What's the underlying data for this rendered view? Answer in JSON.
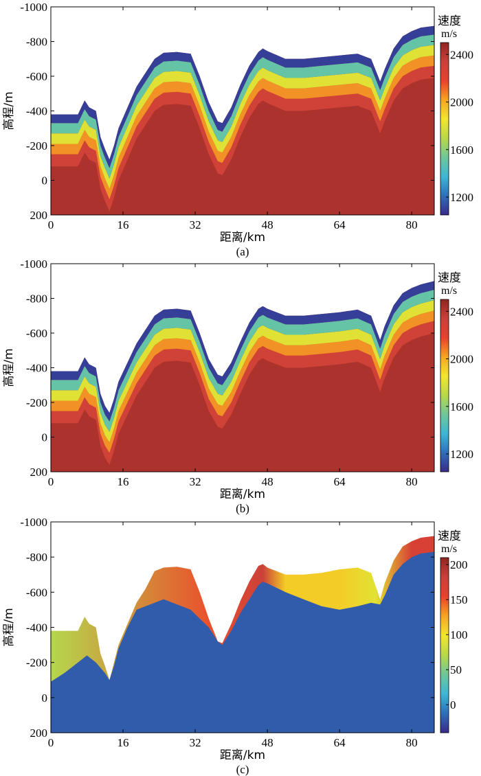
{
  "colors": {
    "ramp": [
      "#3a2a8a",
      "#2e6fb8",
      "#3fb6d6",
      "#6fc79a",
      "#b8d84a",
      "#f4e62a",
      "#f5a623",
      "#e8412e",
      "#c9413a",
      "#8f2620"
    ]
  },
  "chart_data": [
    {
      "type": "heatmap",
      "caption": "(a)",
      "xlabel": "距离/km",
      "ylabel": "高程/m",
      "xlim": [
        0,
        85
      ],
      "ylim": [
        200,
        -1000
      ],
      "x_ticks": [
        {
          "v": 0,
          "label": "0"
        },
        {
          "v": 16,
          "label": "16"
        },
        {
          "v": 32,
          "label": "32"
        },
        {
          "v": 48,
          "label": "48"
        },
        {
          "v": 64,
          "label": "64"
        },
        {
          "v": 80,
          "label": "80"
        }
      ],
      "y_ticks": [
        {
          "v": -1000,
          "label": "-1000"
        },
        {
          "v": -800,
          "label": "-800"
        },
        {
          "v": -600,
          "label": "-600"
        },
        {
          "v": -400,
          "label": "-400"
        },
        {
          "v": -200,
          "label": "-200"
        },
        {
          "v": 0,
          "label": "0"
        },
        {
          "v": 200,
          "label": "200"
        }
      ],
      "colorbar": {
        "title": "速度",
        "unit": "m/s",
        "range": [
          1050,
          2500
        ],
        "ticks": [
          {
            "v": 1200,
            "label": "1200"
          },
          {
            "v": 1600,
            "label": "1600"
          },
          {
            "v": 2000,
            "label": "2000"
          },
          {
            "v": 2400,
            "label": "2400"
          }
        ]
      },
      "surface": [
        [
          0,
          -380
        ],
        [
          3,
          -380
        ],
        [
          6,
          -380
        ],
        [
          7.5,
          -460
        ],
        [
          8.5,
          -420
        ],
        [
          10,
          -400
        ],
        [
          11,
          -250
        ],
        [
          12,
          -180
        ],
        [
          13,
          -120
        ],
        [
          14,
          -200
        ],
        [
          15,
          -300
        ],
        [
          17,
          -420
        ],
        [
          19,
          -540
        ],
        [
          21,
          -620
        ],
        [
          23,
          -700
        ],
        [
          25,
          -735
        ],
        [
          28,
          -740
        ],
        [
          31,
          -730
        ],
        [
          33,
          -600
        ],
        [
          35,
          -450
        ],
        [
          37,
          -340
        ],
        [
          38,
          -330
        ],
        [
          40,
          -420
        ],
        [
          42,
          -550
        ],
        [
          44,
          -660
        ],
        [
          46,
          -740
        ],
        [
          47,
          -760
        ],
        [
          48,
          -745
        ],
        [
          52,
          -700
        ],
        [
          56,
          -700
        ],
        [
          60,
          -710
        ],
        [
          64,
          -720
        ],
        [
          68,
          -730
        ],
        [
          71,
          -700
        ],
        [
          73,
          -570
        ],
        [
          74,
          -640
        ],
        [
          76,
          -760
        ],
        [
          78,
          -830
        ],
        [
          80,
          -860
        ],
        [
          82,
          -880
        ],
        [
          85,
          -890
        ]
      ],
      "values_top_to_depth": [
        [
          0,
          1100
        ],
        [
          50,
          1500
        ],
        [
          110,
          1800
        ],
        [
          170,
          2050
        ],
        [
          230,
          2300
        ],
        [
          300,
          2420
        ]
      ]
    },
    {
      "type": "heatmap",
      "caption": "(b)",
      "xlabel": "距离/km",
      "ylabel": "高程/m",
      "xlim": [
        0,
        85
      ],
      "ylim": [
        200,
        -1000
      ],
      "x_ticks": [
        {
          "v": 0,
          "label": "0"
        },
        {
          "v": 16,
          "label": "16"
        },
        {
          "v": 32,
          "label": "32"
        },
        {
          "v": 48,
          "label": "48"
        },
        {
          "v": 64,
          "label": "64"
        },
        {
          "v": 80,
          "label": "80"
        }
      ],
      "y_ticks": [
        {
          "v": -1000,
          "label": "-1000"
        },
        {
          "v": -800,
          "label": "-800"
        },
        {
          "v": -600,
          "label": "-600"
        },
        {
          "v": -400,
          "label": "-400"
        },
        {
          "v": -200,
          "label": "-200"
        },
        {
          "v": 0,
          "label": "0"
        },
        {
          "v": 200,
          "label": "200"
        }
      ],
      "colorbar": {
        "title": "速度",
        "unit": "m/s",
        "range": [
          1050,
          2500
        ],
        "ticks": [
          {
            "v": 1200,
            "label": "1200"
          },
          {
            "v": 1600,
            "label": "1600"
          },
          {
            "v": 2000,
            "label": "2000"
          },
          {
            "v": 2400,
            "label": "2400"
          }
        ]
      },
      "surface": [
        [
          0,
          -380
        ],
        [
          3,
          -380
        ],
        [
          6,
          -380
        ],
        [
          7.5,
          -460
        ],
        [
          8.5,
          -420
        ],
        [
          10,
          -400
        ],
        [
          11,
          -250
        ],
        [
          12,
          -180
        ],
        [
          13,
          -140
        ],
        [
          14,
          -220
        ],
        [
          15,
          -320
        ],
        [
          17,
          -430
        ],
        [
          19,
          -540
        ],
        [
          21,
          -620
        ],
        [
          23,
          -700
        ],
        [
          25,
          -735
        ],
        [
          28,
          -740
        ],
        [
          31,
          -730
        ],
        [
          33,
          -600
        ],
        [
          35,
          -450
        ],
        [
          37,
          -360
        ],
        [
          38,
          -350
        ],
        [
          40,
          -430
        ],
        [
          42,
          -550
        ],
        [
          44,
          -660
        ],
        [
          46,
          -740
        ],
        [
          47,
          -755
        ],
        [
          48,
          -740
        ],
        [
          52,
          -700
        ],
        [
          56,
          -700
        ],
        [
          60,
          -710
        ],
        [
          64,
          -720
        ],
        [
          68,
          -735
        ],
        [
          71,
          -700
        ],
        [
          73,
          -560
        ],
        [
          74,
          -640
        ],
        [
          76,
          -760
        ],
        [
          78,
          -830
        ],
        [
          80,
          -860
        ],
        [
          82,
          -880
        ],
        [
          85,
          -900
        ]
      ],
      "values_top_to_depth": [
        [
          0,
          1100
        ],
        [
          50,
          1500
        ],
        [
          110,
          1800
        ],
        [
          170,
          2050
        ],
        [
          230,
          2300
        ],
        [
          300,
          2420
        ]
      ]
    },
    {
      "type": "heatmap",
      "caption": "(c)",
      "xlabel": "距离/km",
      "ylabel": "高程/m",
      "xlim": [
        0,
        85
      ],
      "ylim": [
        200,
        -1000
      ],
      "x_ticks": [
        {
          "v": 0,
          "label": "0"
        },
        {
          "v": 16,
          "label": "16"
        },
        {
          "v": 32,
          "label": "32"
        },
        {
          "v": 48,
          "label": "48"
        },
        {
          "v": 64,
          "label": "64"
        },
        {
          "v": 80,
          "label": "80"
        }
      ],
      "y_ticks": [
        {
          "v": -1000,
          "label": "-1000"
        },
        {
          "v": -800,
          "label": "-800"
        },
        {
          "v": -600,
          "label": "-600"
        },
        {
          "v": -400,
          "label": "-400"
        },
        {
          "v": -200,
          "label": "-200"
        },
        {
          "v": 0,
          "label": "0"
        },
        {
          "v": 200,
          "label": "200"
        }
      ],
      "colorbar": {
        "title": "速度",
        "unit": "m/s",
        "range": [
          -40,
          210
        ],
        "ticks": [
          {
            "v": 0,
            "label": "0"
          },
          {
            "v": 50,
            "label": "50"
          },
          {
            "v": 100,
            "label": "100"
          },
          {
            "v": 150,
            "label": "150"
          },
          {
            "v": 200,
            "label": "200"
          }
        ]
      },
      "surface": [
        [
          0,
          -380
        ],
        [
          3,
          -380
        ],
        [
          6,
          -380
        ],
        [
          7.5,
          -460
        ],
        [
          8.5,
          -420
        ],
        [
          10,
          -400
        ],
        [
          11,
          -250
        ],
        [
          12,
          -180
        ],
        [
          13,
          -100
        ],
        [
          14,
          -200
        ],
        [
          15,
          -300
        ],
        [
          17,
          -420
        ],
        [
          19,
          -540
        ],
        [
          21,
          -620
        ],
        [
          23,
          -720
        ],
        [
          25,
          -740
        ],
        [
          28,
          -745
        ],
        [
          31,
          -730
        ],
        [
          33,
          -600
        ],
        [
          35,
          -450
        ],
        [
          37,
          -320
        ],
        [
          38,
          -310
        ],
        [
          40,
          -420
        ],
        [
          42,
          -550
        ],
        [
          44,
          -660
        ],
        [
          46,
          -750
        ],
        [
          47,
          -760
        ],
        [
          48,
          -740
        ],
        [
          52,
          -700
        ],
        [
          56,
          -700
        ],
        [
          60,
          -710
        ],
        [
          64,
          -730
        ],
        [
          68,
          -740
        ],
        [
          71,
          -710
        ],
        [
          73,
          -560
        ],
        [
          74,
          -650
        ],
        [
          76,
          -780
        ],
        [
          78,
          -860
        ],
        [
          80,
          -890
        ],
        [
          82,
          -910
        ],
        [
          85,
          -920
        ]
      ],
      "base": [
        [
          0,
          -90
        ],
        [
          3,
          -140
        ],
        [
          6,
          -200
        ],
        [
          8,
          -240
        ],
        [
          10,
          -200
        ],
        [
          12,
          -140
        ],
        [
          13,
          -100
        ],
        [
          14,
          -180
        ],
        [
          15,
          -280
        ],
        [
          17,
          -400
        ],
        [
          19,
          -500
        ],
        [
          21,
          -520
        ],
        [
          23,
          -540
        ],
        [
          25,
          -560
        ],
        [
          28,
          -530
        ],
        [
          31,
          -500
        ],
        [
          33,
          -450
        ],
        [
          35,
          -400
        ],
        [
          37,
          -320
        ],
        [
          38,
          -300
        ],
        [
          40,
          -380
        ],
        [
          42,
          -480
        ],
        [
          44,
          -560
        ],
        [
          46,
          -640
        ],
        [
          47,
          -660
        ],
        [
          48,
          -650
        ],
        [
          52,
          -600
        ],
        [
          56,
          -560
        ],
        [
          60,
          -520
        ],
        [
          64,
          -500
        ],
        [
          68,
          -520
        ],
        [
          71,
          -540
        ],
        [
          73,
          -530
        ],
        [
          74,
          -580
        ],
        [
          76,
          -700
        ],
        [
          78,
          -760
        ],
        [
          80,
          -800
        ],
        [
          82,
          -820
        ],
        [
          85,
          -830
        ]
      ],
      "fill_values": [
        [
          0,
          70
        ],
        [
          35,
          150
        ],
        [
          47,
          180
        ],
        [
          52,
          110
        ],
        [
          64,
          110
        ],
        [
          72,
          90
        ],
        [
          80,
          170
        ],
        [
          85,
          170
        ]
      ],
      "base_value": -20
    }
  ]
}
